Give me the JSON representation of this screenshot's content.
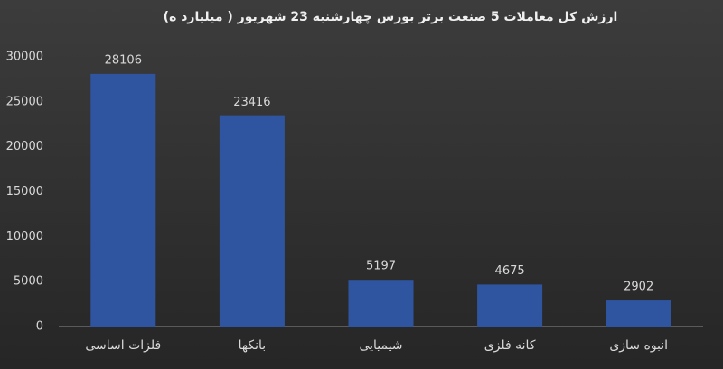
{
  "chart_data": {
    "type": "bar",
    "title": "ارزش کل معاملات 5 صنعت برتر بورس چهارشنبه 23 شهریور ( میلیارد ه)",
    "categories": [
      "فلزات اساسی",
      "بانکها",
      "شیمیایی",
      "کانه فلزی",
      "انبوه سازی"
    ],
    "values": [
      28106,
      23416,
      5197,
      4675,
      2902
    ],
    "color": "#2f55a0",
    "ylim": [
      0,
      30000
    ],
    "yticks": [
      0,
      5000,
      10000,
      15000,
      20000,
      25000,
      30000
    ],
    "grid": false
  }
}
